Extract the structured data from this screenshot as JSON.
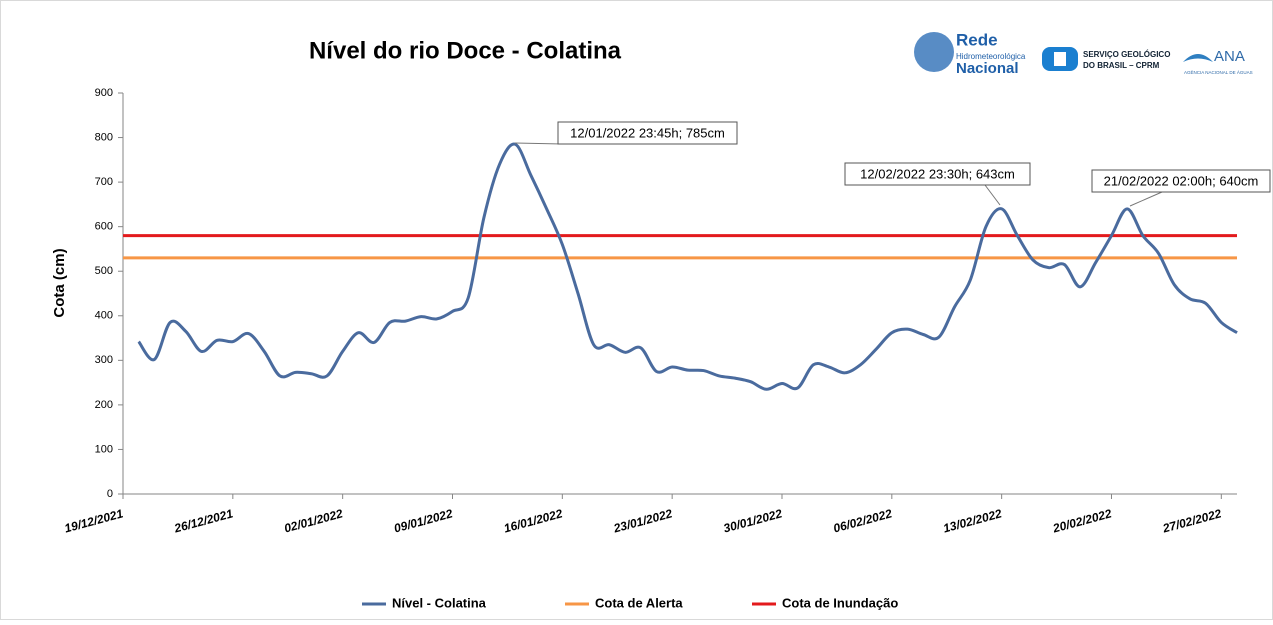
{
  "chart_data": {
    "type": "line",
    "title": "Nível do rio Doce - Colatina",
    "y_label": "Cota (cm)",
    "logos": {
      "rede": [
        "Rede",
        "Hidrometeorológica",
        "Nacional"
      ],
      "cprm": [
        "SERVIÇO GEOLÓGICO",
        "DO BRASIL – CPRM"
      ],
      "ana": [
        "ANA",
        "AGÊNCIA NACIONAL DE ÁGUAS"
      ]
    },
    "x": [
      "20/12/2021",
      "21/12/2021",
      "22/12/2021",
      "23/12/2021",
      "24/12/2021",
      "25/12/2021",
      "26/12/2021",
      "27/12/2021",
      "28/12/2021",
      "29/12/2021",
      "30/12/2021",
      "31/12/2021",
      "01/01/2022",
      "02/01/2022",
      "03/01/2022",
      "04/01/2022",
      "05/01/2022",
      "06/01/2022",
      "07/01/2022",
      "08/01/2022",
      "09/01/2022",
      "10/01/2022",
      "11/01/2022",
      "12/01/2022",
      "13/01/2022",
      "14/01/2022",
      "15/01/2022",
      "16/01/2022",
      "17/01/2022",
      "18/01/2022",
      "19/01/2022",
      "20/01/2022",
      "21/01/2022",
      "22/01/2022",
      "23/01/2022",
      "24/01/2022",
      "25/01/2022",
      "26/01/2022",
      "27/01/2022",
      "28/01/2022",
      "29/01/2022",
      "30/01/2022",
      "31/01/2022",
      "01/02/2022",
      "02/02/2022",
      "03/02/2022",
      "04/02/2022",
      "05/02/2022",
      "06/02/2022",
      "07/02/2022",
      "08/02/2022",
      "09/02/2022",
      "10/02/2022",
      "11/02/2022",
      "12/02/2022",
      "13/02/2022",
      "14/02/2022",
      "15/02/2022",
      "16/02/2022",
      "17/02/2022",
      "18/02/2022",
      "19/02/2022",
      "20/02/2022",
      "21/02/2022",
      "22/02/2022",
      "23/02/2022",
      "24/02/2022",
      "25/02/2022",
      "26/02/2022",
      "27/02/2022",
      "28/02/2022"
    ],
    "series": [
      {
        "name": "Nível - Colatina",
        "color": "#4a6b9e",
        "values": [
          342,
          302,
          385,
          365,
          320,
          345,
          342,
          360,
          320,
          265,
          273,
          270,
          265,
          320,
          362,
          340,
          385,
          388,
          398,
          393,
          410,
          440,
          620,
          740,
          785,
          715,
          640,
          560,
          450,
          335,
          335,
          318,
          328,
          275,
          285,
          278,
          277,
          265,
          260,
          252,
          235,
          248,
          238,
          290,
          285,
          272,
          290,
          325,
          362,
          370,
          358,
          352,
          420,
          480,
          600,
          640,
          580,
          525,
          508,
          515,
          465,
          520,
          580,
          640,
          580,
          540,
          470,
          438,
          428,
          385,
          362
        ]
      }
    ],
    "thresholds": [
      {
        "name": "Cota de Alerta",
        "color": "#f79646",
        "value": 530
      },
      {
        "name": "Cota de Inundação",
        "color": "#e31a1c",
        "value": 580
      }
    ],
    "annotations": [
      "12/01/2022 23:45h; 785cm",
      "12/02/2022 23:30h; 643cm",
      "21/02/2022 02:00h; 640cm"
    ],
    "xlim": [
      "19/12/2021",
      "28/02/2022"
    ],
    "xticks": [
      "19/12/2021",
      "26/12/2021",
      "02/01/2022",
      "09/01/2022",
      "16/01/2022",
      "23/01/2022",
      "30/01/2022",
      "06/02/2022",
      "13/02/2022",
      "20/02/2022",
      "27/02/2022"
    ],
    "ylim": [
      0,
      900
    ],
    "yticks": [
      0,
      100,
      200,
      300,
      400,
      500,
      600,
      700,
      800,
      900
    ],
    "grid": false
  }
}
